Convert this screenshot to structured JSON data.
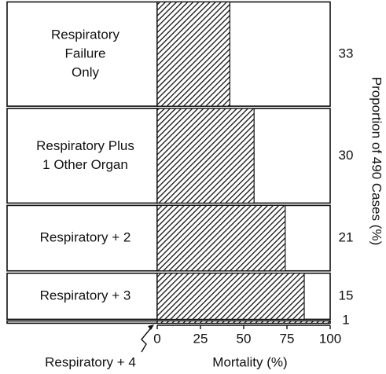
{
  "chart_data": {
    "type": "bar",
    "categories": [
      [
        "Respiratory",
        "Failure",
        "Only"
      ],
      [
        "Respiratory Plus",
        "1 Other Organ"
      ],
      [
        "Respiratory + 2"
      ],
      [
        "Respiratory + 3"
      ],
      [
        "Respiratory + 4"
      ]
    ],
    "values": [
      42,
      56,
      74,
      85,
      100
    ],
    "proportions": [
      33,
      30,
      21,
      15,
      1
    ],
    "xlim": [
      0,
      100
    ],
    "xticks": [
      0,
      25,
      50,
      75,
      100
    ],
    "xlabel": "Mortality (%)",
    "ylabel": "Proportion of 490 Cases (%)"
  }
}
